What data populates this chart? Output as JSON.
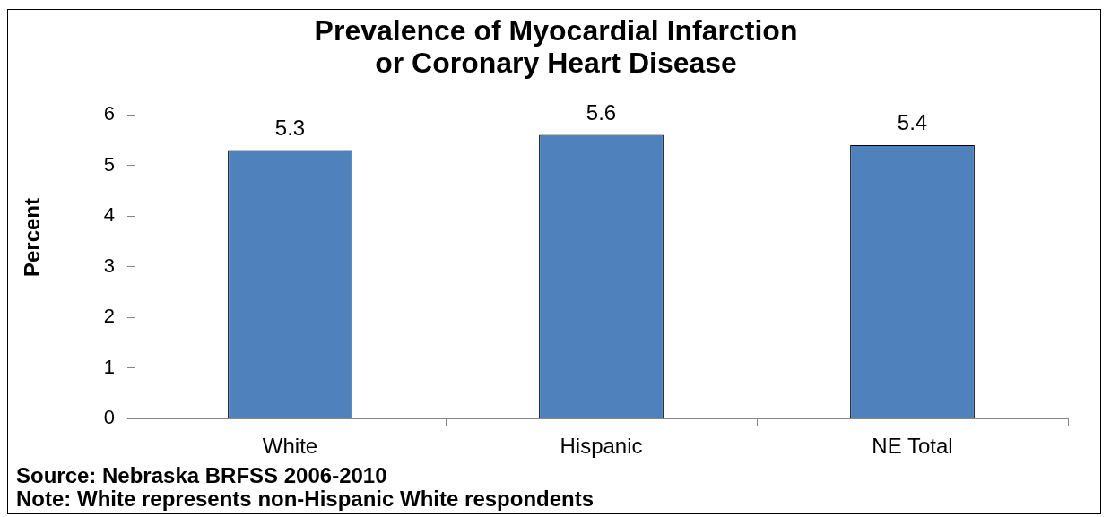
{
  "chart_data": {
    "type": "bar",
    "title": "Prevalence of Myocardial Infarction or Coronary Heart Disease",
    "ylabel": "Percent",
    "categories": [
      "White",
      "Hispanic",
      "NE Total"
    ],
    "values": [
      5.3,
      5.6,
      5.4
    ],
    "color": "#4f81bd",
    "ylim": [
      0,
      6
    ],
    "yticks": [
      0,
      1,
      2,
      3,
      4,
      5,
      6
    ],
    "data_labels": true,
    "annotations": [
      "Source: Nebraska BRFSS 2006-2010",
      "Note: White represents non-Hispanic White respondents"
    ]
  }
}
